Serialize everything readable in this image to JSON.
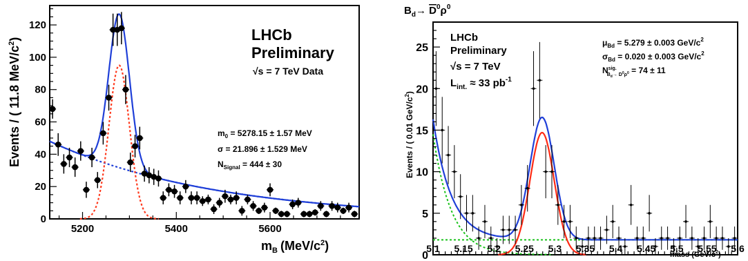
{
  "chart_data": [
    {
      "type": "scatter",
      "xlabel_main": "m",
      "xlabel_sub": "B",
      "xlabel_unit": "(MeV/c",
      "xlabel_sup": "2",
      "xlabel_close": ")",
      "ylabel": "Events / ( 11.8 MeV/c",
      "ylabel_sup": "2",
      "ylabel_close": ")",
      "xlim": [
        5130,
        5790
      ],
      "ylim": [
        0,
        132
      ],
      "xticks": [
        5200,
        5400,
        5600
      ],
      "yticks": [
        0,
        20,
        40,
        60,
        80,
        100,
        120
      ],
      "text": {
        "experiment": "LHCb",
        "status": "Preliminary",
        "energy_root": "√s",
        "energy": " = 7 TeV Data"
      },
      "annotations": {
        "m0_label": "m",
        "m0_sub": "0",
        "m0_value": " = 5278.15 ± 1.57 MeV",
        "sigma_value": "σ = 21.896 ± 1.529 MeV",
        "n_label": "N",
        "n_sub": "Signal",
        "n_value": " = 444 ± 30"
      },
      "fit": {
        "mean": 5278.15,
        "sigma": 21.896,
        "peak_height": 95,
        "bkg_a": 48,
        "bkg_b": 0.0028,
        "x0": 5130
      },
      "points": [
        [
          5136,
          68,
          6
        ],
        [
          5148,
          46,
          7
        ],
        [
          5160,
          34,
          6
        ],
        [
          5172,
          38,
          6
        ],
        [
          5184,
          32,
          6
        ],
        [
          5196,
          42,
          6
        ],
        [
          5208,
          18,
          5
        ],
        [
          5220,
          38,
          6
        ],
        [
          5232,
          24,
          5
        ],
        [
          5244,
          53,
          7
        ],
        [
          5256,
          75,
          8
        ],
        [
          5265,
          117,
          10
        ],
        [
          5274,
          117,
          10
        ],
        [
          5283,
          118,
          10
        ],
        [
          5292,
          80,
          9
        ],
        [
          5302,
          35,
          6
        ],
        [
          5312,
          45,
          7
        ],
        [
          5322,
          50,
          7
        ],
        [
          5332,
          28,
          5
        ],
        [
          5342,
          27,
          5
        ],
        [
          5352,
          26,
          5
        ],
        [
          5362,
          25,
          5
        ],
        [
          5372,
          13,
          4
        ],
        [
          5384,
          18,
          4
        ],
        [
          5396,
          17,
          4
        ],
        [
          5408,
          13,
          4
        ],
        [
          5420,
          20,
          4
        ],
        [
          5432,
          13,
          4
        ],
        [
          5444,
          13,
          4
        ],
        [
          5456,
          11,
          3
        ],
        [
          5468,
          12,
          3
        ],
        [
          5480,
          6,
          3
        ],
        [
          5492,
          10,
          3
        ],
        [
          5504,
          14,
          4
        ],
        [
          5516,
          12,
          3
        ],
        [
          5528,
          13,
          4
        ],
        [
          5540,
          5,
          3
        ],
        [
          5552,
          12,
          3
        ],
        [
          5564,
          8,
          3
        ],
        [
          5576,
          5,
          2
        ],
        [
          5588,
          7,
          3
        ],
        [
          5600,
          18,
          4
        ],
        [
          5612,
          5,
          2
        ],
        [
          5624,
          3,
          2
        ],
        [
          5636,
          3,
          2
        ],
        [
          5648,
          9,
          3
        ],
        [
          5660,
          10,
          3
        ],
        [
          5672,
          3,
          2
        ],
        [
          5684,
          3,
          2
        ],
        [
          5696,
          4,
          2
        ],
        [
          5708,
          8,
          3
        ],
        [
          5720,
          3,
          2
        ],
        [
          5732,
          8,
          3
        ],
        [
          5744,
          7,
          3
        ],
        [
          5756,
          5,
          2
        ],
        [
          5768,
          7,
          3
        ],
        [
          5780,
          3,
          2
        ]
      ]
    },
    {
      "type": "scatter",
      "title_main": "B",
      "title_sub": "d",
      "title_arrow": "→ ",
      "title_dbar": "D",
      "title_dsup": "0",
      "title_rho": "ρ",
      "title_rsup": "0",
      "xlabel": "mass (GeV/c",
      "xlabel_sup": "2",
      "xlabel_close": ")",
      "ylabel": "Events / ( 0.01 GeV/c",
      "ylabel_sup": "2",
      "ylabel_close": ")",
      "xlim": [
        5.1,
        5.6
      ],
      "ylim": [
        0,
        28
      ],
      "xticks": [
        5.1,
        5.15,
        5.2,
        5.25,
        5.3,
        5.35,
        5.4,
        5.45,
        5.5,
        5.55,
        5.6
      ],
      "xticklabels": [
        "5.1",
        "5.15",
        "5.2",
        "5.25",
        "5.3",
        "5.35",
        "5.4",
        "5.45",
        "5.5",
        "5.55",
        "5.6"
      ],
      "yticks": [
        0,
        5,
        10,
        15,
        20,
        25
      ],
      "text": {
        "experiment": "LHCb",
        "status": "Preliminary",
        "energy_root": "√s",
        "energy": " = 7 TeV",
        "lumi_label": "L",
        "lumi_sub": "int.",
        "lumi_value": " ≈ 33 pb",
        "lumi_sup": "-1"
      },
      "annotations": {
        "mu_label": "μ",
        "mu_sub": "Bd",
        "mu_value": " =  5.279 ± 0.003 GeV/c",
        "mu_sup": "2",
        "sig_label": "σ",
        "sig_sub": "Bd",
        "sig_value": " =  0.020 ± 0.003 GeV/c",
        "sig_sup": "2",
        "n_label": "N",
        "n_sup": "sig.",
        "n_sub": "B",
        "n_sub2": "d",
        "n_sub3": "→ D",
        "n_sub4": "0",
        "n_sub5": "ρ",
        "n_sub6": "0",
        "n_value": " =  74 ± 11"
      },
      "fit": {
        "mean": 5.279,
        "sigma": 0.02,
        "peak_height": 14.7,
        "flat": 1.8,
        "exp_amp": 14.5,
        "exp_tau": 0.03
      },
      "points": [
        [
          5.105,
          20,
          4.5
        ],
        [
          5.115,
          15,
          4
        ],
        [
          5.125,
          12,
          3.5
        ],
        [
          5.135,
          10,
          3.2
        ],
        [
          5.145,
          7,
          2.7
        ],
        [
          5.155,
          5,
          2.2
        ],
        [
          5.165,
          5,
          2.2
        ],
        [
          5.175,
          2,
          1.4
        ],
        [
          5.185,
          4,
          2
        ],
        [
          5.195,
          2,
          1.4
        ],
        [
          5.205,
          1,
          1
        ],
        [
          5.215,
          3,
          1.7
        ],
        [
          5.225,
          3,
          1.7
        ],
        [
          5.235,
          3,
          1.7
        ],
        [
          5.245,
          6,
          2.4
        ],
        [
          5.255,
          8,
          2.8
        ],
        [
          5.265,
          20,
          4.5
        ],
        [
          5.275,
          21,
          4.6
        ],
        [
          5.285,
          10,
          3.2
        ],
        [
          5.295,
          10,
          3.2
        ],
        [
          5.305,
          6,
          2.4
        ],
        [
          5.315,
          4,
          2
        ],
        [
          5.325,
          4,
          2
        ],
        [
          5.335,
          2,
          1.4
        ],
        [
          5.345,
          1,
          1
        ],
        [
          5.355,
          2,
          1.4
        ],
        [
          5.365,
          2,
          1.4
        ],
        [
          5.375,
          2,
          1.4
        ],
        [
          5.385,
          3,
          1.7
        ],
        [
          5.395,
          4,
          2
        ],
        [
          5.405,
          2,
          1.4
        ],
        [
          5.415,
          1,
          1
        ],
        [
          5.425,
          6,
          2.4
        ],
        [
          5.435,
          2,
          1.4
        ],
        [
          5.445,
          2,
          1.4
        ],
        [
          5.455,
          5,
          2.2
        ],
        [
          5.465,
          1,
          1
        ],
        [
          5.475,
          2,
          1.4
        ],
        [
          5.485,
          2,
          1.4
        ],
        [
          5.495,
          1,
          1
        ],
        [
          5.505,
          2,
          1.4
        ],
        [
          5.515,
          4,
          2
        ],
        [
          5.525,
          2,
          1.4
        ],
        [
          5.535,
          1,
          1
        ],
        [
          5.545,
          2,
          1.4
        ],
        [
          5.555,
          4,
          2
        ],
        [
          5.565,
          2,
          1.4
        ],
        [
          5.575,
          2,
          1.4
        ],
        [
          5.585,
          1,
          1
        ],
        [
          5.595,
          2,
          1.4
        ]
      ]
    }
  ]
}
